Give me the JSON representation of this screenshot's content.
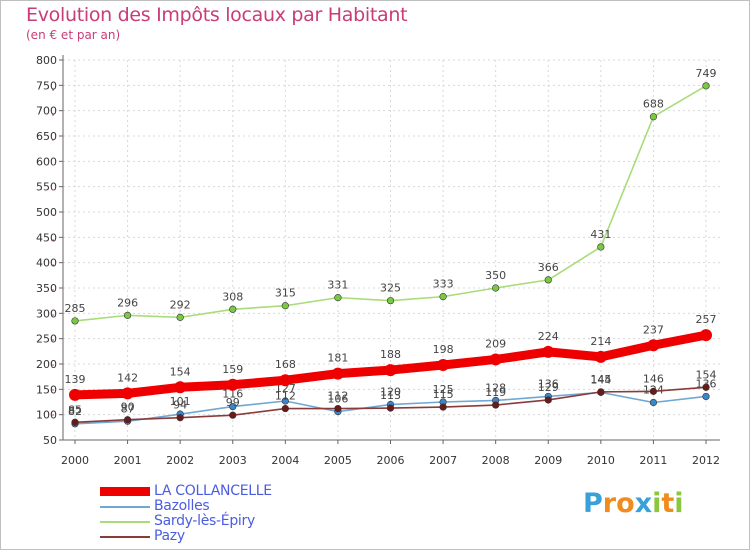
{
  "chart_data": {
    "type": "line",
    "title": "Evolution des Impôts locaux par Habitant",
    "subtitle": "(en € et par an)",
    "categories": [
      "2000",
      "2001",
      "2002",
      "2003",
      "2004",
      "2005",
      "2006",
      "2007",
      "2008",
      "2009",
      "2010",
      "2011",
      "2012"
    ],
    "ylim": [
      50,
      800
    ],
    "yticks": [
      50,
      100,
      150,
      200,
      250,
      300,
      350,
      400,
      450,
      500,
      550,
      600,
      650,
      700,
      750,
      800
    ],
    "grid": true,
    "legend_position": "bottom-left",
    "series": [
      {
        "name": "Sardy-lès-Épiry",
        "color": "#a8dc78",
        "marker_color": "#7ac943",
        "values": [
          285,
          296,
          292,
          308,
          315,
          331,
          325,
          333,
          350,
          366,
          431,
          688,
          749
        ],
        "labels": [
          "285",
          "296",
          "292",
          "308",
          "315",
          "331",
          "325",
          "333",
          "350",
          "366",
          "431",
          "688",
          "749"
        ]
      },
      {
        "name": "Bazolles",
        "color": "#6fa8d4",
        "marker_color": "#3a86c8",
        "values": [
          82,
          87,
          101,
          116,
          127,
          106,
          120,
          125,
          128,
          136,
          144,
          124,
          136
        ],
        "labels": [
          "82",
          "87",
          "101",
          "116",
          "127",
          "106",
          "120",
          "125",
          "128",
          "136",
          "144",
          "124",
          "136"
        ]
      },
      {
        "name": "Pazy",
        "color": "#8b3a3a",
        "marker_color": "#6b1a1a",
        "values": [
          85,
          90,
          94,
          99,
          112,
          112,
          113,
          115,
          119,
          129,
          145,
          146,
          154
        ],
        "labels": [
          "85",
          "90",
          "94",
          "99",
          "112",
          "112",
          "113",
          "115",
          "119",
          "129",
          "145",
          "146",
          "154"
        ]
      },
      {
        "name": "LA COLLANCELLE",
        "color": "#ee0000",
        "marker_color": "#ee0000",
        "values": [
          139,
          142,
          154,
          159,
          168,
          181,
          188,
          198,
          209,
          224,
          214,
          237,
          257
        ],
        "labels": [
          "139",
          "142",
          "154",
          "159",
          "168",
          "181",
          "188",
          "198",
          "209",
          "224",
          "214",
          "237",
          "257"
        ]
      }
    ]
  },
  "legend": {
    "items": [
      {
        "label": "LA COLLANCELLE",
        "color": "#ee0000"
      },
      {
        "label": "Bazolles",
        "color": "#6fa8d4"
      },
      {
        "label": "Sardy-lès-Épiry",
        "color": "#a8dc78"
      },
      {
        "label": "Pazy",
        "color": "#8b3a3a"
      }
    ]
  },
  "logo": {
    "text": "Proxiti",
    "letters": [
      {
        "ch": "P",
        "color": "#3aa0d8"
      },
      {
        "ch": "r",
        "color": "#f08c1e"
      },
      {
        "ch": "o",
        "color": "#f08c1e"
      },
      {
        "ch": "x",
        "color": "#3aa0d8"
      },
      {
        "ch": "i",
        "color": "#8cc63f"
      },
      {
        "ch": "t",
        "color": "#f08c1e"
      },
      {
        "ch": "i",
        "color": "#8cc63f"
      }
    ]
  }
}
